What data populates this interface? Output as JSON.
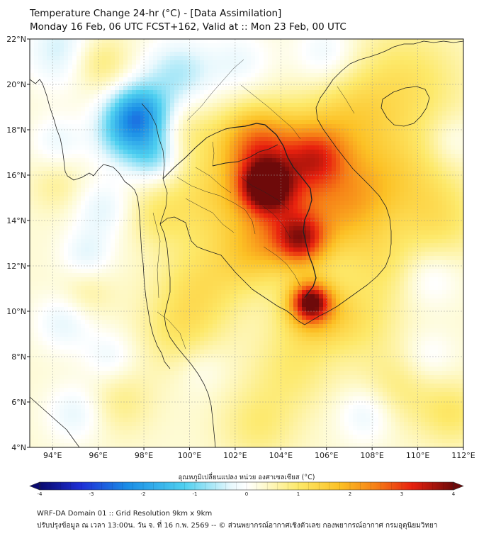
{
  "title": {
    "line1": "Temperature Change 24-hr (°C) - [Data Assimilation]",
    "line2": "Monday 16 Feb, 06 UTC FCST+162, Valid at :: Mon 23 Feb, 00 UTC"
  },
  "map": {
    "lon_range": [
      93,
      112
    ],
    "lat_range": [
      4,
      22
    ],
    "lon_ticks": [
      94,
      96,
      98,
      100,
      102,
      104,
      106,
      108,
      110,
      112
    ],
    "lon_tick_labels": [
      "94°E",
      "96°E",
      "98°E",
      "100°E",
      "102°E",
      "104°E",
      "106°E",
      "108°E",
      "110°E",
      "112°E"
    ],
    "lat_ticks": [
      4,
      6,
      8,
      10,
      12,
      14,
      16,
      18,
      20,
      22
    ],
    "lat_tick_labels": [
      "4°N",
      "6°N",
      "8°N",
      "10°N",
      "12°N",
      "14°N",
      "16°N",
      "18°N",
      "20°N",
      "22°N"
    ],
    "anomalies": [
      {
        "lon": 97.8,
        "lat": 18.7,
        "value": -2.0,
        "spread": 0.9
      },
      {
        "lon": 97.2,
        "lat": 17.8,
        "value": -1.2,
        "spread": 1.0
      },
      {
        "lon": 98.5,
        "lat": 16.8,
        "value": -1.0,
        "spread": 0.8
      },
      {
        "lon": 99.5,
        "lat": 20.5,
        "value": -0.9,
        "spread": 1.1
      },
      {
        "lon": 94.5,
        "lat": 21.5,
        "value": -0.8,
        "spread": 1.2
      },
      {
        "lon": 96.2,
        "lat": 14.5,
        "value": -0.6,
        "spread": 0.9
      },
      {
        "lon": 95.5,
        "lat": 12.5,
        "value": -0.6,
        "spread": 0.8
      },
      {
        "lon": 94.2,
        "lat": 17.5,
        "value": -0.5,
        "spread": 0.8
      },
      {
        "lon": 94.5,
        "lat": 9.5,
        "value": -0.6,
        "spread": 0.9
      },
      {
        "lon": 96.5,
        "lat": 8.0,
        "value": -0.5,
        "spread": 0.8
      },
      {
        "lon": 95.0,
        "lat": 5.5,
        "value": -0.6,
        "spread": 0.9
      },
      {
        "lon": 102.2,
        "lat": 21.0,
        "value": -0.5,
        "spread": 1.0
      },
      {
        "lon": 106.0,
        "lat": 21.3,
        "value": -0.6,
        "spread": 1.0
      },
      {
        "lon": 107.8,
        "lat": 5.5,
        "value": -0.7,
        "spread": 0.9
      },
      {
        "lon": 110.5,
        "lat": 11.5,
        "value": -0.5,
        "spread": 0.9
      },
      {
        "lon": 111.5,
        "lat": 17.5,
        "value": -0.4,
        "spread": 0.8
      },
      {
        "lon": 110.5,
        "lat": 8.0,
        "value": -0.4,
        "spread": 0.8
      },
      {
        "lon": 100.5,
        "lat": 7.5,
        "value": -0.3,
        "spread": 0.8
      },
      {
        "lon": 96.0,
        "lat": 21.0,
        "value": 0.8,
        "spread": 0.9
      },
      {
        "lon": 103.3,
        "lat": 15.5,
        "value": 2.8,
        "spread": 0.8
      },
      {
        "lon": 104.5,
        "lat": 16.3,
        "value": 1.8,
        "spread": 1.6
      },
      {
        "lon": 102.8,
        "lat": 17.5,
        "value": 1.5,
        "spread": 1.1
      },
      {
        "lon": 105.6,
        "lat": 16.8,
        "value": 1.2,
        "spread": 0.9
      },
      {
        "lon": 104.9,
        "lat": 13.1,
        "value": 2.2,
        "spread": 0.8
      },
      {
        "lon": 104.0,
        "lat": 13.8,
        "value": 1.0,
        "spread": 1.2
      },
      {
        "lon": 105.3,
        "lat": 10.4,
        "value": 2.8,
        "spread": 0.6
      },
      {
        "lon": 105.5,
        "lat": 10.0,
        "value": 1.2,
        "spread": 1.1
      },
      {
        "lon": 102.8,
        "lat": 12.5,
        "value": 0.9,
        "spread": 1.1
      },
      {
        "lon": 101.0,
        "lat": 15.0,
        "value": 0.9,
        "spread": 1.6
      },
      {
        "lon": 100.5,
        "lat": 11.0,
        "value": 0.8,
        "spread": 1.4
      },
      {
        "lon": 99.5,
        "lat": 9.0,
        "value": 0.6,
        "spread": 1.2
      },
      {
        "lon": 106.8,
        "lat": 14.0,
        "value": 0.9,
        "spread": 1.3
      },
      {
        "lon": 107.5,
        "lat": 15.5,
        "value": 0.8,
        "spread": 1.3
      },
      {
        "lon": 107.0,
        "lat": 18.5,
        "value": 0.8,
        "spread": 1.4
      },
      {
        "lon": 109.5,
        "lat": 20.0,
        "value": 0.8,
        "spread": 1.8
      },
      {
        "lon": 109.5,
        "lat": 16.0,
        "value": 0.7,
        "spread": 1.5
      },
      {
        "lon": 111.0,
        "lat": 14.0,
        "value": 0.7,
        "spread": 1.3
      },
      {
        "lon": 108.5,
        "lat": 12.0,
        "value": 0.6,
        "spread": 1.2
      },
      {
        "lon": 107.5,
        "lat": 9.5,
        "value": 0.6,
        "spread": 1.2
      },
      {
        "lon": 104.5,
        "lat": 7.5,
        "value": 0.6,
        "spread": 1.3
      },
      {
        "lon": 103.0,
        "lat": 5.0,
        "value": 0.6,
        "spread": 1.2
      },
      {
        "lon": 109.0,
        "lat": 6.5,
        "value": 0.6,
        "spread": 1.2
      },
      {
        "lon": 111.5,
        "lat": 5.5,
        "value": 0.7,
        "spread": 1.0
      },
      {
        "lon": 97.0,
        "lat": 6.0,
        "value": 0.5,
        "spread": 1.0
      },
      {
        "lon": 95.5,
        "lat": 10.8,
        "value": 0.4,
        "spread": 0.8
      },
      {
        "lon": 94.2,
        "lat": 15.5,
        "value": 0.4,
        "spread": 0.8
      },
      {
        "lon": 98.5,
        "lat": 14.2,
        "value": 0.5,
        "spread": 0.9
      },
      {
        "lon": 100.0,
        "lat": 18.0,
        "value": 0.4,
        "spread": 0.9
      }
    ]
  },
  "colorbar": {
    "label": "อุณหภูมิเปลี่ยนแปลง หน่วย องศาเซลเซียส (°C)",
    "ticks": [
      -4,
      -3,
      -2,
      -1,
      0,
      1,
      2,
      3,
      4
    ],
    "tick_labels": [
      "-4",
      "-3",
      "-2",
      "-1",
      "0",
      "1",
      "2",
      "3",
      "4"
    ],
    "stops": [
      {
        "value": -4.0,
        "color": "#0a0a6e"
      },
      {
        "value": -3.2,
        "color": "#1e2fd6"
      },
      {
        "value": -2.3,
        "color": "#1b8ee6"
      },
      {
        "value": -1.2,
        "color": "#4fd0f0"
      },
      {
        "value": -0.3,
        "color": "#e8f8fd"
      },
      {
        "value": 0.0,
        "color": "#ffffff"
      },
      {
        "value": 0.3,
        "color": "#fefbd6"
      },
      {
        "value": 1.0,
        "color": "#fde96a"
      },
      {
        "value": 1.8,
        "color": "#fcc125"
      },
      {
        "value": 2.5,
        "color": "#f67f16"
      },
      {
        "value": 3.2,
        "color": "#e8200e"
      },
      {
        "value": 4.0,
        "color": "#6e0a0a"
      }
    ]
  },
  "footer": {
    "line1": "WRF-DA Domain 01 :: Grid Resolution 9km x 9km",
    "line2": "ปรับปรุงข้อมูล ณ เวลา 13:00น. วัน จ. ที่ 16 ก.พ. 2569 -- © ส่วนพยากรณ์อากาศเชิงตัวเลข กองพยากรณ์อากาศ กรมอุตุนิยมวิทยา"
  }
}
